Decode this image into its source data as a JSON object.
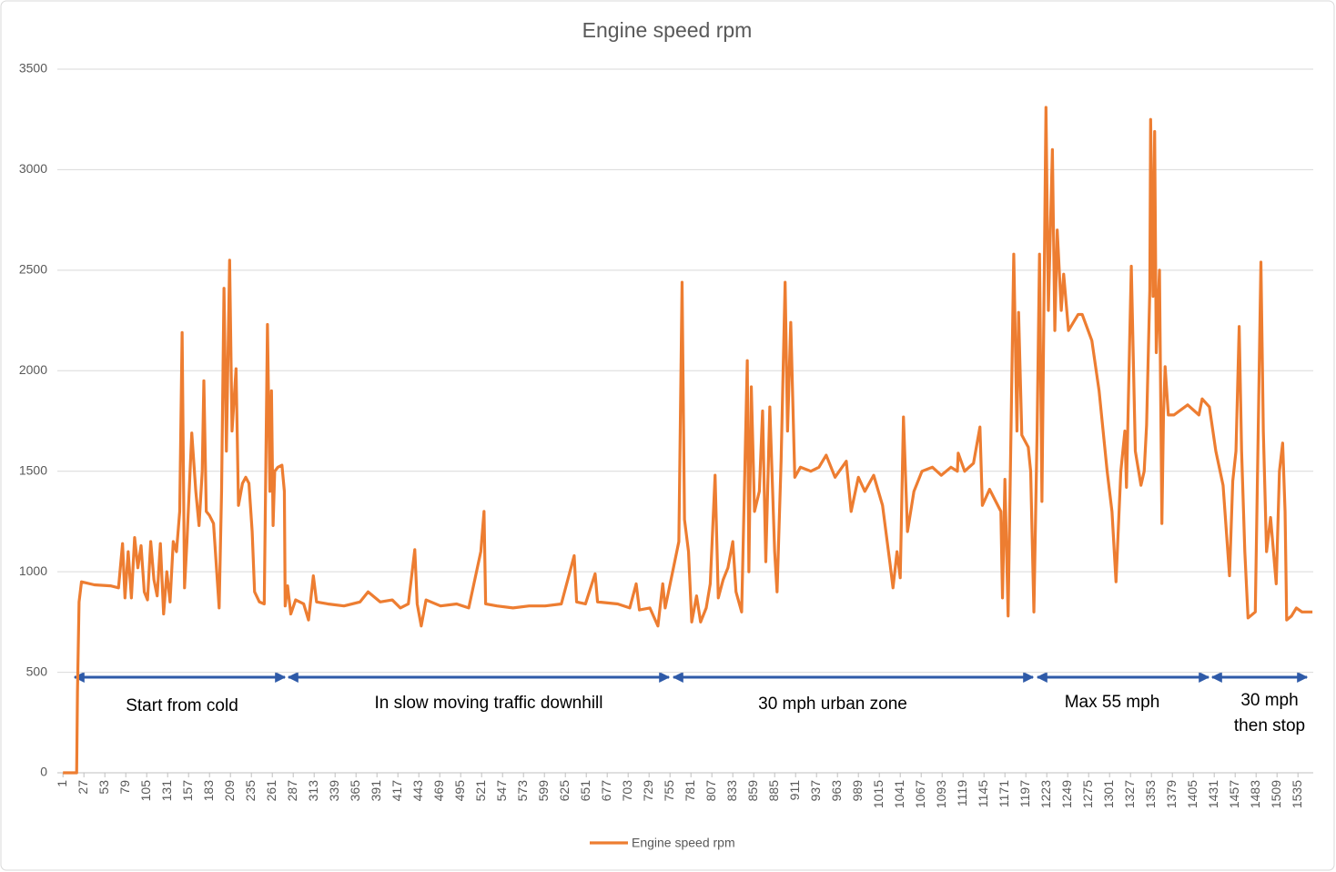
{
  "chart_data": {
    "type": "line",
    "title": "Engine speed rpm",
    "x": [
      1,
      10,
      18,
      19,
      21,
      24,
      40,
      60,
      70,
      75,
      78,
      82,
      86,
      90,
      94,
      98,
      102,
      106,
      110,
      114,
      118,
      122,
      126,
      130,
      134,
      138,
      142,
      146,
      149,
      152,
      155,
      161,
      166,
      170,
      174,
      176,
      179,
      183,
      188,
      192,
      195,
      198,
      201,
      204,
      208,
      211,
      216,
      219,
      224,
      228,
      232,
      236,
      239,
      245,
      251,
      255,
      258,
      260,
      262,
      264,
      268,
      273,
      276,
      277,
      280,
      284,
      290,
      300,
      306,
      312,
      316,
      330,
      350,
      370,
      380,
      395,
      410,
      420,
      430,
      438,
      441,
      446,
      452,
      470,
      490,
      505,
      520,
      524,
      526,
      540,
      560,
      580,
      600,
      620,
      636,
      639,
      650,
      662,
      665,
      690,
      705,
      713,
      717,
      730,
      740,
      746,
      749,
      766,
      770,
      773,
      778,
      782,
      788,
      793,
      800,
      805,
      811,
      815,
      821,
      827,
      833,
      837,
      844,
      851,
      853,
      856,
      860,
      866,
      870,
      874,
      879,
      885,
      888,
      893,
      898,
      901,
      905,
      910,
      917,
      930,
      940,
      949,
      960,
      974,
      980,
      989,
      997,
      1008,
      1019,
      1028,
      1032,
      1037,
      1041,
      1045,
      1050,
      1058,
      1068,
      1081,
      1092,
      1104,
      1112,
      1113,
      1121,
      1132,
      1140,
      1143,
      1152,
      1166,
      1168,
      1171,
      1175,
      1182,
      1186,
      1188,
      1192,
      1200,
      1203,
      1207,
      1211,
      1214,
      1217,
      1222,
      1225,
      1230,
      1233,
      1236,
      1241,
      1244,
      1250,
      1262,
      1267,
      1279,
      1288,
      1298,
      1304,
      1309,
      1315,
      1320,
      1322,
      1328,
      1333,
      1340,
      1344,
      1347,
      1351,
      1352,
      1355,
      1357,
      1359,
      1363,
      1366,
      1368,
      1370,
      1374,
      1381,
      1398,
      1412,
      1416,
      1425,
      1433,
      1442,
      1450,
      1454,
      1458,
      1462,
      1465,
      1469,
      1473,
      1482,
      1489,
      1492,
      1496,
      1501,
      1508,
      1512,
      1516,
      1519,
      1521,
      1527,
      1533,
      1540,
      1553
    ],
    "series": [
      {
        "name": "Engine speed rpm",
        "color": "#ed7d31",
        "values": [
          0,
          0,
          0,
          400,
          850,
          950,
          935,
          930,
          920,
          1140,
          870,
          1100,
          870,
          1170,
          1020,
          1130,
          900,
          860,
          1150,
          960,
          880,
          1140,
          790,
          1000,
          850,
          1150,
          1100,
          1300,
          2190,
          920,
          1150,
          1690,
          1400,
          1230,
          1500,
          1950,
          1300,
          1280,
          1240,
          1000,
          820,
          1400,
          2410,
          1600,
          2550,
          1700,
          2010,
          1330,
          1440,
          1470,
          1440,
          1200,
          900,
          850,
          840,
          2230,
          1400,
          1900,
          1230,
          1500,
          1520,
          1530,
          1400,
          830,
          930,
          790,
          860,
          840,
          760,
          980,
          850,
          840,
          830,
          850,
          900,
          850,
          860,
          820,
          840,
          1110,
          840,
          730,
          860,
          830,
          840,
          820,
          1100,
          1300,
          840,
          830,
          820,
          830,
          830,
          840,
          1080,
          850,
          840,
          990,
          850,
          840,
          820,
          940,
          810,
          820,
          730,
          940,
          820,
          1150,
          2440,
          1260,
          1100,
          750,
          880,
          750,
          820,
          940,
          1480,
          870,
          960,
          1020,
          1150,
          900,
          800,
          2050,
          1000,
          1920,
          1300,
          1400,
          1800,
          1050,
          1820,
          1100,
          900,
          1550,
          2440,
          1700,
          2240,
          1470,
          1520,
          1500,
          1520,
          1580,
          1470,
          1550,
          1300,
          1470,
          1400,
          1480,
          1330,
          1050,
          920,
          1100,
          970,
          1770,
          1200,
          1400,
          1500,
          1520,
          1480,
          1520,
          1500,
          1590,
          1500,
          1540,
          1720,
          1330,
          1410,
          1300,
          870,
          1460,
          780,
          2580,
          1700,
          2290,
          1680,
          1620,
          1500,
          800,
          1700,
          2580,
          1350,
          3310,
          2300,
          3100,
          2200,
          2700,
          2300,
          2480,
          2200,
          2280,
          2280,
          2150,
          1900,
          1500,
          1300,
          950,
          1500,
          1700,
          1420,
          2520,
          1600,
          1430,
          1500,
          1730,
          2400,
          3250,
          2370,
          3190,
          2090,
          2500,
          1240,
          1780,
          2020,
          1780,
          1780,
          1830,
          1780,
          1860,
          1820,
          1600,
          1430,
          980,
          1450,
          1600,
          2220,
          1600,
          1100,
          770,
          800,
          2540,
          1700,
          1100,
          1270,
          940,
          1500,
          1640,
          1300,
          760,
          780,
          820,
          800,
          800
        ]
      }
    ],
    "xlim": [
      -6,
      1554
    ],
    "xticks": [
      1,
      27,
      53,
      79,
      105,
      131,
      157,
      183,
      209,
      235,
      261,
      287,
      313,
      339,
      365,
      391,
      417,
      443,
      469,
      495,
      521,
      547,
      573,
      599,
      625,
      651,
      677,
      703,
      729,
      755,
      781,
      807,
      833,
      859,
      885,
      911,
      937,
      963,
      989,
      1015,
      1041,
      1067,
      1093,
      1119,
      1145,
      1171,
      1197,
      1223,
      1249,
      1275,
      1301,
      1327,
      1353,
      1379,
      1405,
      1431,
      1457,
      1483,
      1509,
      1535
    ],
    "ylim": [
      0,
      3500
    ],
    "yticks": [
      0,
      500,
      1000,
      1500,
      2000,
      2500,
      3000,
      3500
    ],
    "grid": true,
    "legend": "bottom",
    "annotations": [
      "Start from cold",
      "In slow moving traffic downhill",
      "30 mph urban zone",
      "Max 55 mph",
      "30 mph then stop"
    ]
  }
}
